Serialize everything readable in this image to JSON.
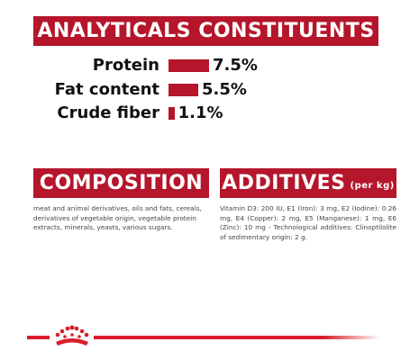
{
  "analytical": {
    "title": "ANALYTICALS CONSTITUENTS",
    "items": [
      {
        "label": "Protein",
        "value": 7.5,
        "value_label": "7.5%"
      },
      {
        "label": "Fat content",
        "value": 5.5,
        "value_label": "5.5%"
      },
      {
        "label": "Crude fiber",
        "value": 1.1,
        "value_label": "1.1%"
      }
    ]
  },
  "composition": {
    "title": "COMPOSITION",
    "text": "meat and animal derivatives, oils and fats, cereals, derivatives of vegetable origin, vegetable protein extracts, minerals, yeasts, various sugars."
  },
  "additives": {
    "title": "ADDITIVES",
    "unit": "(per kg)",
    "text": "Vitamin D3: 200 IU, E1 (Iron): 3 mg, E2 (Iodine): 0.26 mg, E4 (Copper): 2 mg, E5 (Manganese): 1 mg, E6 (Zinc): 10 mg - Technological additives: Clinoptilolite of sedimentary origin: 2 g."
  }
}
